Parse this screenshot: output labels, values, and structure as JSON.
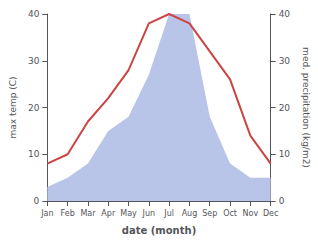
{
  "chart_data": {
    "type": "line",
    "categories": [
      "Jan",
      "Feb",
      "Mar",
      "Apr",
      "May",
      "Jun",
      "Jul",
      "Aug",
      "Sep",
      "Oct",
      "Nov",
      "Dec"
    ],
    "xlabel": "date (month)",
    "ylabel": "max temp (C)",
    "y2label": "med. precipitation (kg/m2)",
    "series": [
      {
        "type": "area",
        "axis": "y2",
        "color": "#b8c4e8",
        "values": [
          3,
          5,
          8,
          15,
          18,
          27,
          40,
          40,
          18,
          8,
          5,
          5
        ]
      },
      {
        "type": "line",
        "color": "#cc4444",
        "values": [
          8,
          10,
          17,
          22,
          28,
          38,
          40,
          38,
          32,
          26,
          14,
          8
        ]
      }
    ],
    "ylim": [
      0,
      40
    ],
    "yticks": [
      0,
      10,
      20,
      30,
      40
    ],
    "y2lim": [
      0,
      40
    ],
    "y2ticks": [
      0,
      10,
      20,
      30,
      40
    ],
    "grid": false
  }
}
